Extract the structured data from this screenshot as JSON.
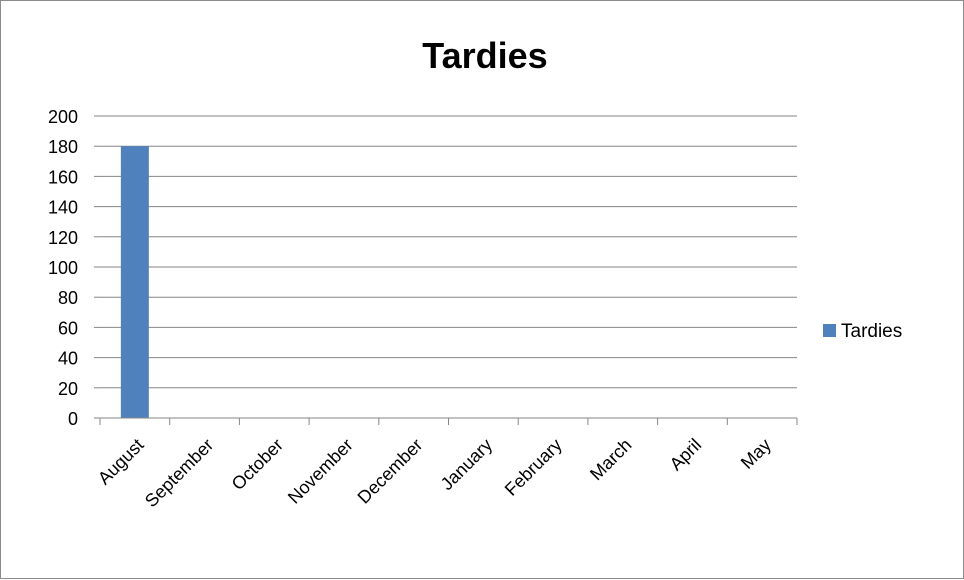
{
  "chart_data": {
    "type": "bar",
    "title": "Tardies",
    "categories": [
      "August",
      "September",
      "October",
      "November",
      "December",
      "January",
      "February",
      "March",
      "April",
      "May"
    ],
    "series": [
      {
        "name": "Tardies",
        "values": [
          180,
          0,
          0,
          0,
          0,
          0,
          0,
          0,
          0,
          0
        ]
      }
    ],
    "ylim": [
      0,
      200
    ],
    "yticks": [
      0,
      20,
      40,
      60,
      80,
      100,
      120,
      140,
      160,
      180,
      200
    ],
    "grid": true,
    "legend_position": "right",
    "colors": {
      "bar": "#4f81bd",
      "grid": "#868686",
      "axis": "#868686"
    }
  }
}
